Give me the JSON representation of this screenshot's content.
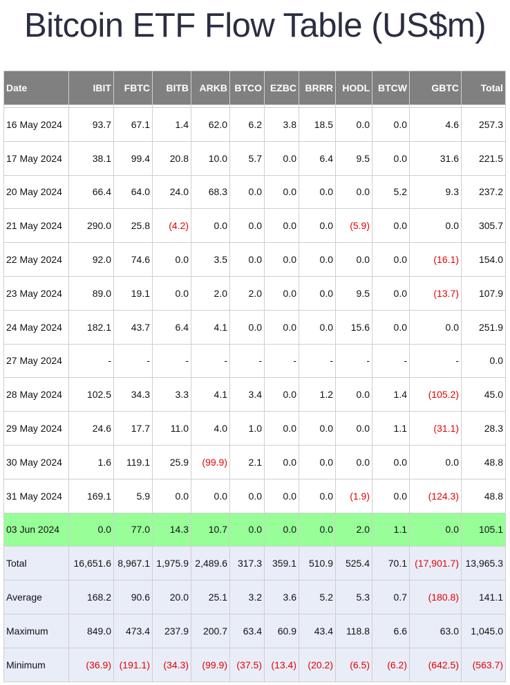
{
  "title": "Bitcoin ETF Flow Table (US$m)",
  "columns": [
    "Date",
    "IBIT",
    "FBTC",
    "BITB",
    "ARKB",
    "BTCO",
    "EZBC",
    "BRRR",
    "HODL",
    "BTCW",
    "GBTC",
    "Total"
  ],
  "colors": {
    "header_bg": "#808080",
    "highlight_bg": "#98ff98",
    "summary_bg": "#e9edf8",
    "negative_text": "#e60000"
  },
  "rows": [
    {
      "cells": [
        "16 May 2024",
        "93.7",
        "67.1",
        "1.4",
        "62.0",
        "6.2",
        "3.8",
        "18.5",
        "0.0",
        "0.0",
        "4.6",
        "257.3"
      ]
    },
    {
      "cells": [
        "17 May 2024",
        "38.1",
        "99.4",
        "20.8",
        "10.0",
        "5.7",
        "0.0",
        "6.4",
        "9.5",
        "0.0",
        "31.6",
        "221.5"
      ]
    },
    {
      "cells": [
        "20 May 2024",
        "66.4",
        "64.0",
        "24.0",
        "68.3",
        "0.0",
        "0.0",
        "0.0",
        "0.0",
        "5.2",
        "9.3",
        "237.2"
      ]
    },
    {
      "cells": [
        "21 May 2024",
        "290.0",
        "25.8",
        "(4.2)",
        "0.0",
        "0.0",
        "0.0",
        "0.0",
        "(5.9)",
        "0.0",
        "0.0",
        "305.7"
      ]
    },
    {
      "cells": [
        "22 May 2024",
        "92.0",
        "74.6",
        "0.0",
        "3.5",
        "0.0",
        "0.0",
        "0.0",
        "0.0",
        "0.0",
        "(16.1)",
        "154.0"
      ]
    },
    {
      "cells": [
        "23 May 2024",
        "89.0",
        "19.1",
        "0.0",
        "2.0",
        "2.0",
        "0.0",
        "0.0",
        "9.5",
        "0.0",
        "(13.7)",
        "107.9"
      ]
    },
    {
      "cells": [
        "24 May 2024",
        "182.1",
        "43.7",
        "6.4",
        "4.1",
        "0.0",
        "0.0",
        "0.0",
        "15.6",
        "0.0",
        "0.0",
        "251.9"
      ]
    },
    {
      "cells": [
        "27 May 2024",
        "-",
        "-",
        "-",
        "-",
        "-",
        "-",
        "-",
        "-",
        "-",
        "-",
        "0.0"
      ]
    },
    {
      "cells": [
        "28 May 2024",
        "102.5",
        "34.3",
        "3.3",
        "4.1",
        "3.4",
        "0.0",
        "1.2",
        "0.0",
        "1.4",
        "(105.2)",
        "45.0"
      ]
    },
    {
      "cells": [
        "29 May 2024",
        "24.6",
        "17.7",
        "11.0",
        "4.0",
        "1.0",
        "0.0",
        "0.0",
        "0.0",
        "1.1",
        "(31.1)",
        "28.3"
      ]
    },
    {
      "cells": [
        "30 May 2024",
        "1.6",
        "119.1",
        "25.9",
        "(99.9)",
        "2.1",
        "0.0",
        "0.0",
        "0.0",
        "0.0",
        "0.0",
        "48.8"
      ]
    },
    {
      "cells": [
        "31 May 2024",
        "169.1",
        "5.9",
        "0.0",
        "0.0",
        "0.0",
        "0.0",
        "0.0",
        "(1.9)",
        "0.0",
        "(124.3)",
        "48.8"
      ]
    },
    {
      "cells": [
        "03 Jun 2024",
        "0.0",
        "77.0",
        "14.3",
        "10.7",
        "0.0",
        "0.0",
        "0.0",
        "2.0",
        "1.1",
        "0.0",
        "105.1"
      ],
      "highlight": true
    }
  ],
  "summary": [
    {
      "cells": [
        "Total",
        "16,651.6",
        "8,967.1",
        "1,975.9",
        "2,489.6",
        "317.3",
        "359.1",
        "510.9",
        "525.4",
        "70.1",
        "(17,901.7)",
        "13,965.3"
      ]
    },
    {
      "cells": [
        "Average",
        "168.2",
        "90.6",
        "20.0",
        "25.1",
        "3.2",
        "3.6",
        "5.2",
        "5.3",
        "0.7",
        "(180.8)",
        "141.1"
      ]
    },
    {
      "cells": [
        "Maximum",
        "849.0",
        "473.4",
        "237.9",
        "200.7",
        "63.4",
        "60.9",
        "43.4",
        "118.8",
        "6.6",
        "63.0",
        "1,045.0"
      ]
    },
    {
      "cells": [
        "Minimum",
        "(36.9)",
        "(191.1)",
        "(34.3)",
        "(99.9)",
        "(37.5)",
        "(13.4)",
        "(20.2)",
        "(6.5)",
        "(6.2)",
        "(642.5)",
        "(563.7)"
      ]
    }
  ]
}
